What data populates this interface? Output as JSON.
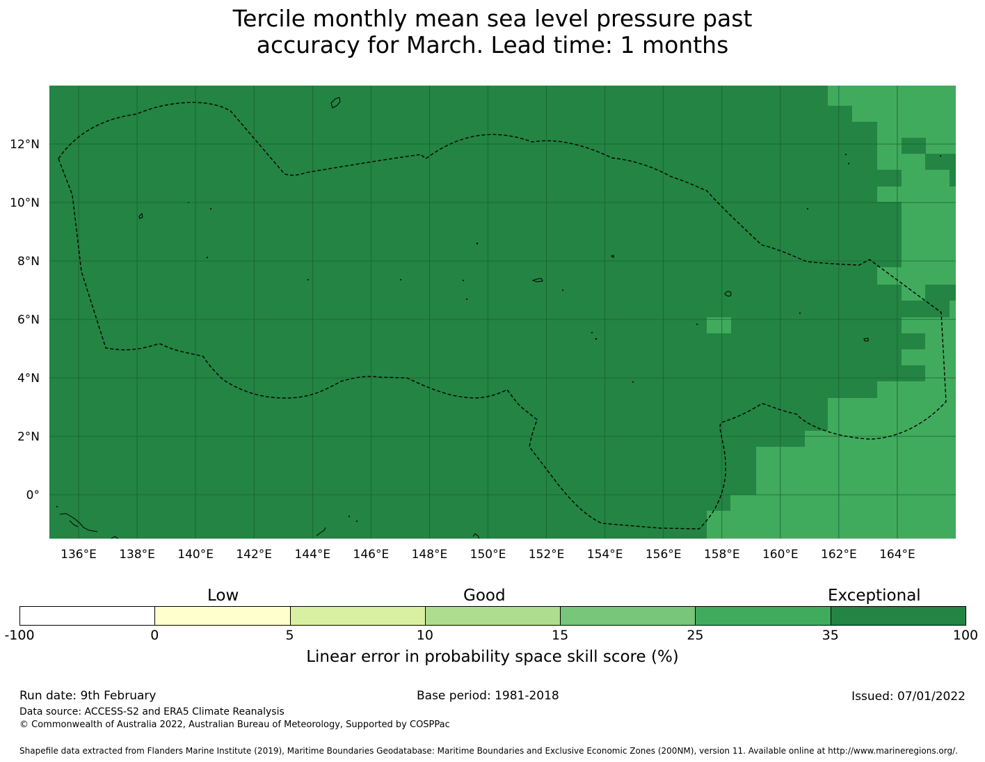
{
  "title": {
    "line1": "Tercile monthly mean sea level pressure past",
    "line2": "accuracy for March. Lead time: 1 months"
  },
  "map": {
    "lon_ticks": [
      "136°E",
      "138°E",
      "140°E",
      "142°E",
      "144°E",
      "146°E",
      "148°E",
      "150°E",
      "152°E",
      "154°E",
      "156°E",
      "158°E",
      "160°E",
      "162°E",
      "164°E"
    ],
    "lon_values": [
      136,
      138,
      140,
      142,
      144,
      146,
      148,
      150,
      152,
      154,
      156,
      158,
      160,
      162,
      164
    ],
    "lat_ticks": [
      "12°N",
      "10°N",
      "8°N",
      "6°N",
      "4°N",
      "2°N",
      "0°"
    ],
    "lat_values": [
      12,
      10,
      8,
      6,
      4,
      2,
      0
    ],
    "extent": {
      "lon_min": 135,
      "lon_max": 166,
      "lat_min": -1.5,
      "lat_max": 14
    },
    "colors": {
      "exceptional": "#238443",
      "very_good": "#41ab5d",
      "gridline": "#1a5e30"
    }
  },
  "colorbar": {
    "category_labels": {
      "low": "Low",
      "good": "Good",
      "exceptional": "Exceptional"
    },
    "ticks": [
      "-100",
      "0",
      "5",
      "10",
      "15",
      "25",
      "35",
      "100"
    ],
    "colors": [
      "#ffffff",
      "#ffffcc",
      "#d9f0a3",
      "#addd8e",
      "#78c679",
      "#41ab5d",
      "#238443"
    ],
    "axis_label": "Linear error in probability space skill score (%)"
  },
  "footer": {
    "run_date": "Run date: 9th February",
    "base_period": "Base period: 1981-2018",
    "issued": "Issued: 07/01/2022",
    "data_source": "Data source: ACCESS-S2 and ERA5 Climate Reanalysis",
    "copyright": "© Commonwealth of Australia 2022, Australian Bureau of Meteorology, Supported by COSPPac",
    "shapefile": "Shapefile data extracted from Flanders Marine Institute (2019), Maritime Boundaries Geodatabase: Maritime Boundaries and Exclusive Economic Zones (200NM), version 11. Available online at http://www.marineregions.org/."
  }
}
